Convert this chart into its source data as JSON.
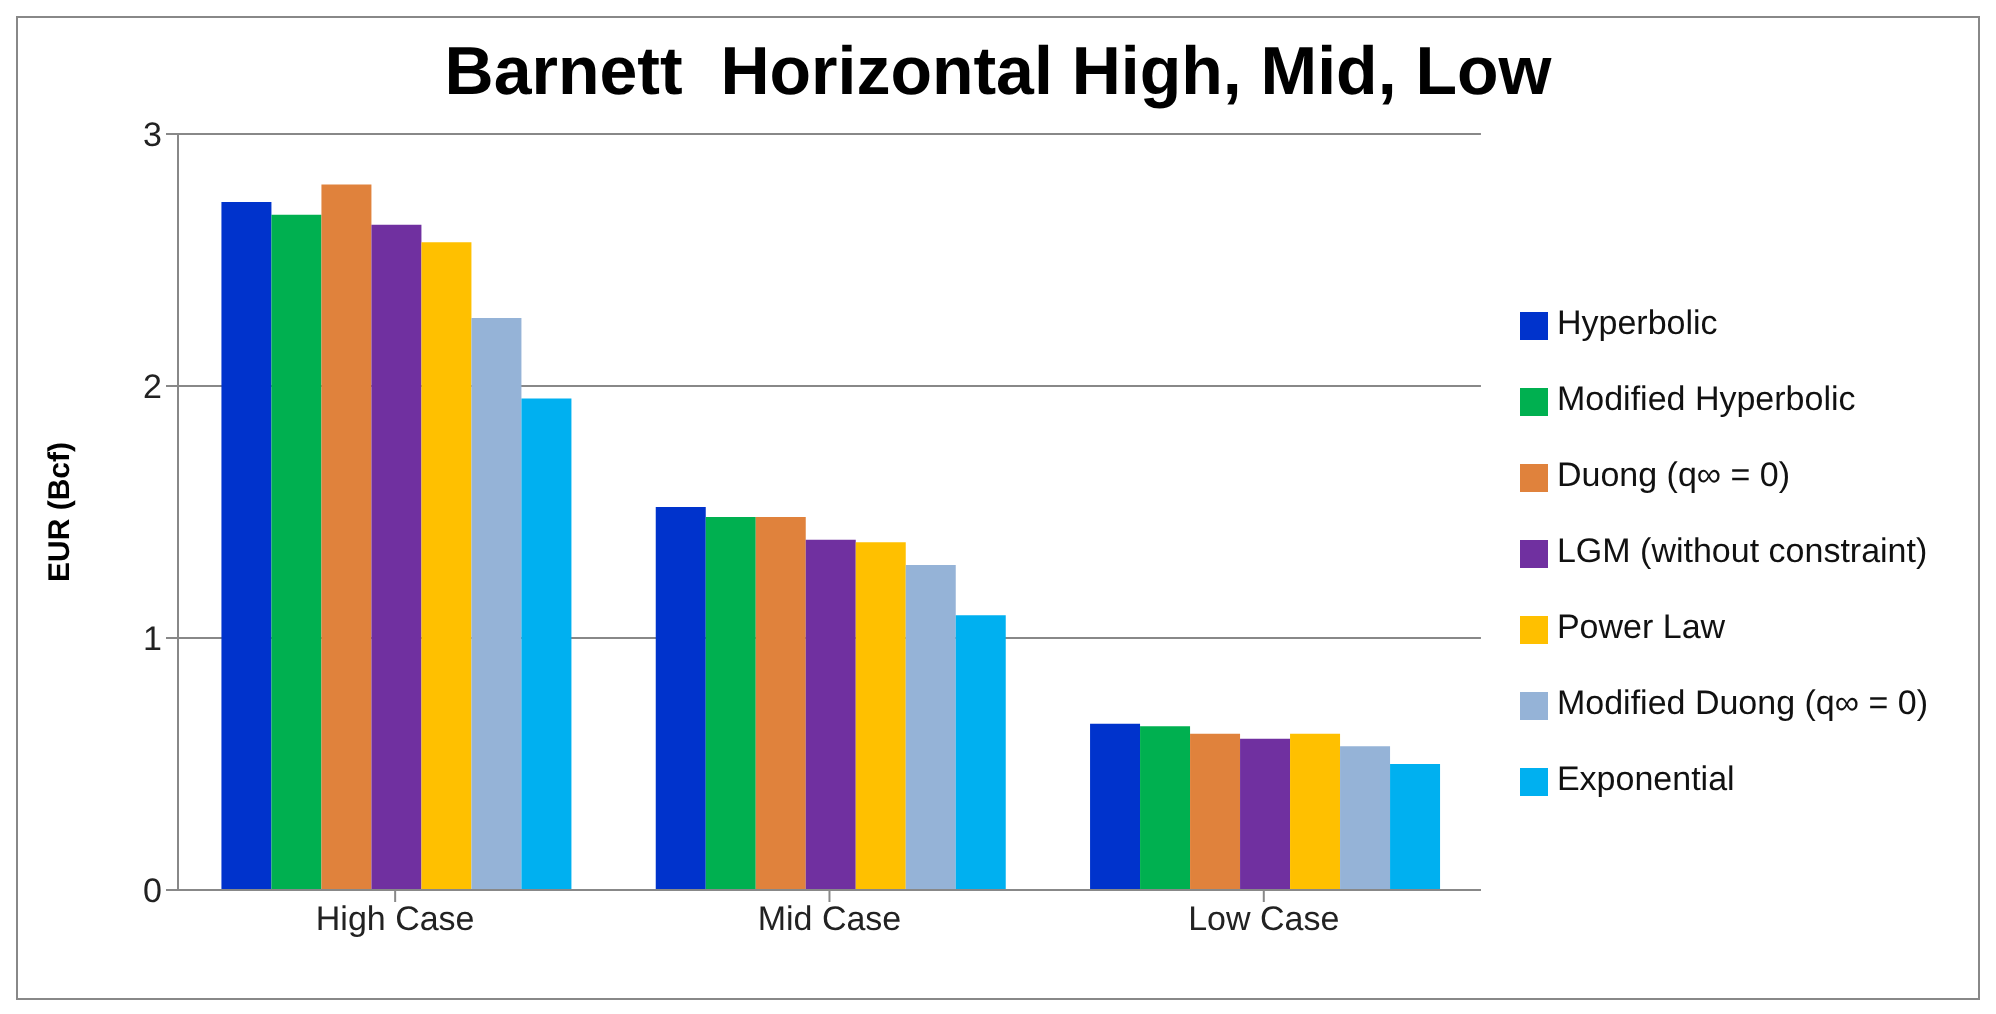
{
  "chart_data": {
    "type": "bar",
    "title": "Barnett  Horizontal High, Mid, Low",
    "ylabel": "EUR (Bcf)",
    "categories": [
      "High Case",
      "Mid Case",
      "Low Case"
    ],
    "series": [
      {
        "name": "Hyperbolic",
        "color": "#0033cc",
        "values": [
          2.73,
          1.52,
          0.66
        ]
      },
      {
        "name": "Modified Hyperbolic",
        "color": "#00b050",
        "values": [
          2.68,
          1.48,
          0.65
        ]
      },
      {
        "name": "Duong (q∞ = 0)",
        "color": "#e0823c",
        "values": [
          2.8,
          1.48,
          0.62
        ]
      },
      {
        "name": "LGM (without constraint)",
        "color": "#7030a0",
        "values": [
          2.64,
          1.39,
          0.6
        ]
      },
      {
        "name": "Power Law",
        "color": "#ffc000",
        "values": [
          2.57,
          1.38,
          0.62
        ]
      },
      {
        "name": "Modified Duong (q∞ = 0)",
        "color": "#95b3d7",
        "values": [
          2.27,
          1.29,
          0.57
        ]
      },
      {
        "name": "Exponential",
        "color": "#00b0f0",
        "values": [
          1.95,
          1.09,
          0.5
        ]
      }
    ],
    "ylim": [
      0,
      3
    ],
    "yticks": [
      0,
      1,
      2,
      3
    ],
    "grid": "y",
    "legend": "right"
  }
}
